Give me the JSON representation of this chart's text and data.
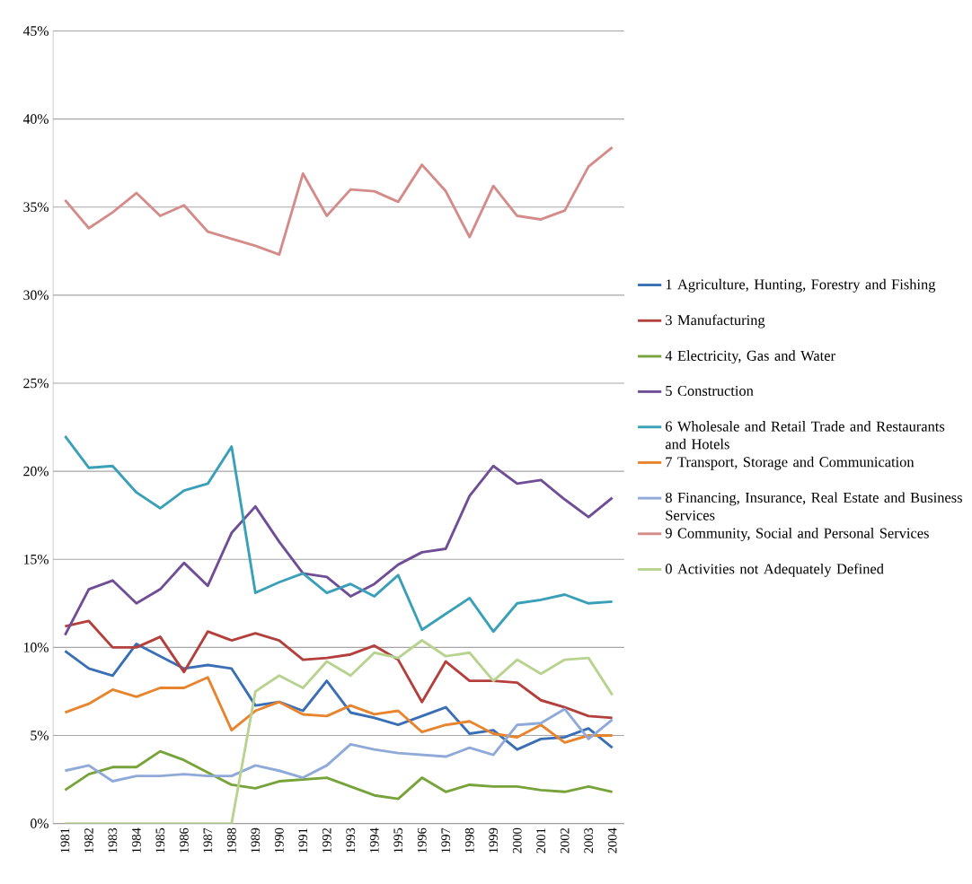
{
  "chart_data": {
    "type": "line",
    "categories": [
      "1981",
      "1982",
      "1983",
      "1984",
      "1985",
      "1986",
      "1987",
      "1988",
      "1989",
      "1990",
      "1991",
      "1992",
      "1993",
      "1994",
      "1995",
      "1996",
      "1997",
      "1998",
      "1999",
      "2000",
      "2001",
      "2002",
      "2003",
      "2004"
    ],
    "series": [
      {
        "name": "1 Agriculture, Hunting, Forestry and Fishing",
        "color": "#3a6fb5",
        "values": [
          9.8,
          8.8,
          8.4,
          10.2,
          9.5,
          8.8,
          9.0,
          8.8,
          6.7,
          6.9,
          6.4,
          8.1,
          6.3,
          6.0,
          5.6,
          6.1,
          6.6,
          5.1,
          5.3,
          4.2,
          4.8,
          4.9,
          5.4,
          4.3
        ]
      },
      {
        "name": "3 Manufacturing",
        "color": "#b3403d",
        "values": [
          11.2,
          11.5,
          10.0,
          10.0,
          10.6,
          8.6,
          10.9,
          10.4,
          10.8,
          10.4,
          9.3,
          9.4,
          9.6,
          10.1,
          9.3,
          6.9,
          9.2,
          8.1,
          8.1,
          8.0,
          7.0,
          6.6,
          6.1,
          6.0
        ]
      },
      {
        "name": "4 Electricity, Gas and Water",
        "color": "#77a33a",
        "values": [
          1.9,
          2.8,
          3.2,
          3.2,
          4.1,
          3.6,
          2.9,
          2.2,
          2.0,
          2.4,
          2.5,
          2.6,
          2.1,
          1.6,
          1.4,
          2.6,
          1.8,
          2.2,
          2.1,
          2.1,
          1.9,
          1.8,
          2.1,
          1.8
        ]
      },
      {
        "name": "5 Construction",
        "color": "#6f4e96",
        "values": [
          10.7,
          13.3,
          13.8,
          12.5,
          13.3,
          14.8,
          13.5,
          16.5,
          18.0,
          16.0,
          14.2,
          14.0,
          12.9,
          13.6,
          14.7,
          15.4,
          15.6,
          18.6,
          20.3,
          19.3,
          19.5,
          18.4,
          17.4,
          18.5
        ]
      },
      {
        "name": "6 Wholesale and Retail Trade and Restaurants and Hotels",
        "color": "#3aa0b8",
        "values": [
          22.0,
          20.2,
          20.3,
          18.8,
          17.9,
          18.9,
          19.3,
          21.4,
          13.1,
          13.7,
          14.2,
          13.1,
          13.6,
          12.9,
          14.1,
          11.0,
          11.9,
          12.8,
          10.9,
          12.5,
          12.7,
          13.0,
          12.5,
          12.6
        ]
      },
      {
        "name": "7 Transport, Storage and Communication",
        "color": "#e8842e",
        "values": [
          6.3,
          6.8,
          7.6,
          7.2,
          7.7,
          7.7,
          8.3,
          5.3,
          6.4,
          6.9,
          6.2,
          6.1,
          6.7,
          6.2,
          6.4,
          5.2,
          5.6,
          5.8,
          5.1,
          4.9,
          5.6,
          4.6,
          5.0,
          5.0
        ]
      },
      {
        "name": "8 Financing, Insurance, Real Estate and Business Services",
        "color": "#8faad8",
        "values": [
          3.0,
          3.3,
          2.4,
          2.7,
          2.7,
          2.8,
          2.7,
          2.7,
          3.3,
          3.0,
          2.6,
          3.3,
          4.5,
          4.2,
          4.0,
          3.9,
          3.8,
          4.3,
          3.9,
          5.6,
          5.7,
          6.5,
          4.8,
          5.9
        ]
      },
      {
        "name": "9 Community, Social and Personal Services",
        "color": "#d48c8a",
        "values": [
          35.4,
          33.8,
          34.7,
          35.8,
          34.5,
          35.1,
          33.6,
          33.2,
          32.8,
          32.3,
          36.9,
          34.5,
          36.0,
          35.9,
          35.3,
          37.4,
          35.9,
          33.3,
          36.2,
          34.5,
          34.3,
          34.8,
          37.3,
          38.4
        ]
      },
      {
        "name": "0 Activities not Adequately Defined",
        "color": "#b8d38f",
        "values": [
          0,
          0,
          0,
          0,
          0,
          0,
          0,
          0,
          7.5,
          8.4,
          7.7,
          9.2,
          8.4,
          9.7,
          9.4,
          10.4,
          9.5,
          9.7,
          8.1,
          9.3,
          8.5,
          9.3,
          9.4,
          7.3
        ]
      }
    ],
    "ylim": [
      0,
      45
    ],
    "yticks": [
      {
        "value": 0,
        "label": "0%"
      },
      {
        "value": 5,
        "label": "5%"
      },
      {
        "value": 10,
        "label": "10%"
      },
      {
        "value": 15,
        "label": "15%"
      },
      {
        "value": 20,
        "label": "20%"
      },
      {
        "value": 25,
        "label": "25%"
      },
      {
        "value": 30,
        "label": "30%"
      },
      {
        "value": 35,
        "label": "35%"
      },
      {
        "value": 40,
        "label": "40%"
      },
      {
        "value": 45,
        "label": "45%"
      }
    ],
    "grid": "y",
    "legend": "right",
    "marker": "none",
    "line_style": "solid"
  }
}
